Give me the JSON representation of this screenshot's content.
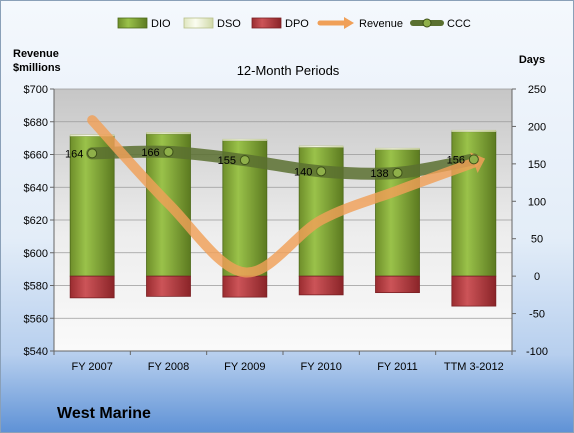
{
  "company": "West Marine",
  "chart_data": {
    "type": "bar",
    "title": "12-Month Periods",
    "y_left_label": [
      "Revenue",
      "$millions"
    ],
    "y_right_label": "Days",
    "categories": [
      "FY 2007",
      "FY 2008",
      "FY 2009",
      "FY 2010",
      "FY 2011",
      "TTM 3-2012"
    ],
    "y_left": {
      "min": 540,
      "max": 700,
      "step": 20,
      "ticks": [
        "$540",
        "$560",
        "$580",
        "$600",
        "$620",
        "$640",
        "$660",
        "$680",
        "$700"
      ]
    },
    "y_right": {
      "min": -100,
      "max": 250,
      "step": 50,
      "ticks": [
        "-100",
        "-50",
        "0",
        "50",
        "100",
        "150",
        "200",
        "250"
      ]
    },
    "grid": true,
    "legend_position": "top",
    "legend": [
      "DIO",
      "DSO",
      "DPO",
      "Revenue",
      "CCC"
    ],
    "series": [
      {
        "name": "DIO",
        "kind": "bar-stack",
        "axis": "right",
        "values": [
          187,
          190,
          181,
          172,
          169,
          193
        ],
        "color": "#8db43c"
      },
      {
        "name": "DSO",
        "kind": "bar-stack",
        "axis": "right",
        "values": [
          2,
          2,
          2,
          2,
          2,
          2
        ],
        "color": "#f1f5de"
      },
      {
        "name": "DPO",
        "kind": "bar-negative",
        "axis": "right",
        "values": [
          -29,
          -27,
          -28,
          -25,
          -22,
          -40
        ],
        "color": "#c04448"
      },
      {
        "name": "Revenue",
        "kind": "line",
        "axis": "left",
        "values": [
          681,
          630,
          588,
          620,
          638,
          655
        ],
        "color": "#f0a058"
      },
      {
        "name": "CCC",
        "kind": "line",
        "axis": "right",
        "values": [
          164,
          166,
          155,
          140,
          138,
          156
        ],
        "labels": [
          "164",
          "166",
          "155",
          "140",
          "138",
          "156"
        ],
        "color": "#5a7030"
      }
    ]
  }
}
